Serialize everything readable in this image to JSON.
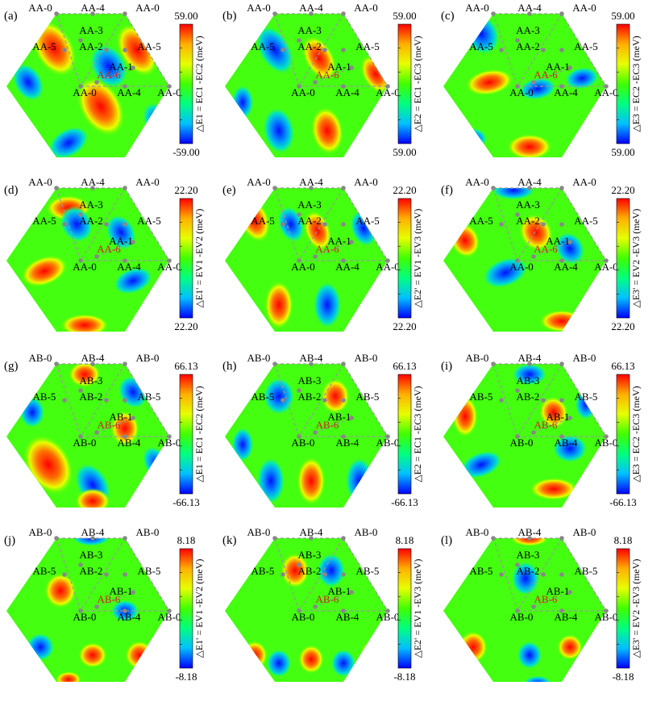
{
  "figure": {
    "colormap": [
      "#0000ff",
      "#00c0ff",
      "#00ff80",
      "#40ff00",
      "#e6ff00",
      "#ffb000",
      "#ff0000"
    ],
    "background_color": "#ffffff",
    "dashed_line_color": "#999999",
    "site_dot_color": "#888888",
    "highlight_label_color": "#d02020"
  },
  "chart_data": [
    {
      "type": "heatmap",
      "panel": "(a)",
      "stacking": "AA",
      "colorbar_label": "△E1 = EC1 -EC2 (meV)",
      "vmax": "59.00",
      "vmin": "-59.00",
      "pattern": 0,
      "site_labels": [
        "AA-0",
        "AA-4",
        "AA-0",
        "AA-3",
        "AA-5",
        "AA-2",
        "AA-5",
        "AA-1",
        "AA-6",
        "AA-0",
        "AA-4",
        "AA-0"
      ]
    },
    {
      "type": "heatmap",
      "panel": "(b)",
      "stacking": "AA",
      "colorbar_label": "△E2 = EC1 -EC3 (meV)",
      "vmax": "59.00",
      "vmin": "59.00",
      "pattern": 1,
      "site_labels": [
        "AA-0",
        "AA-4",
        "AA-0",
        "AA-3",
        "AA-5",
        "AA-2",
        "AA-5",
        "AA-1",
        "AA-6",
        "AA-0",
        "AA-4",
        "AA-0"
      ]
    },
    {
      "type": "heatmap",
      "panel": "(c)",
      "stacking": "AA",
      "colorbar_label": "△E3 = EC2 -EC3 (meV)",
      "vmax": "59.00",
      "vmin": "59.00",
      "pattern": 2,
      "site_labels": [
        "AA-0",
        "AA-4",
        "AA-0",
        "AA-3",
        "AA-5",
        "AA-2",
        "AA-5",
        "AA-1",
        "AA-6",
        "AA-0",
        "AA-4",
        "AA-0"
      ]
    },
    {
      "type": "heatmap",
      "panel": "(d)",
      "stacking": "AA",
      "colorbar_label": "△E1' = EV1 -EV2 (meV)",
      "vmax": "22.20",
      "vmin": "22.20",
      "pattern": 3,
      "site_labels": [
        "AA-0",
        "AA-4",
        "AA-0",
        "AA-3",
        "AA-5",
        "AA-2",
        "AA-5",
        "AA-1",
        "AA-6",
        "AA-0",
        "AA-4",
        "AA-0"
      ]
    },
    {
      "type": "heatmap",
      "panel": "(e)",
      "stacking": "AA",
      "colorbar_label": "△E2' = EV1 -EV3 (meV)",
      "vmax": "22.20",
      "vmin": "22.20",
      "pattern": 4,
      "site_labels": [
        "AA-0",
        "AA-4",
        "AA-0",
        "AA-3",
        "AA-5",
        "AA-2",
        "AA-5",
        "AA-1",
        "AA-6",
        "AA-0",
        "AA-4",
        "AA-0"
      ]
    },
    {
      "type": "heatmap",
      "panel": "(f)",
      "stacking": "AA",
      "colorbar_label": "△E3' = EV2 -EV3 (meV)",
      "vmax": "22.20",
      "vmin": "22.20",
      "pattern": 5,
      "site_labels": [
        "AA-0",
        "AA-4",
        "AA-0",
        "AA-3",
        "AA-5",
        "AA-2",
        "AA-5",
        "AA-1",
        "AA-6",
        "AA-0",
        "AA-4",
        "AA-0"
      ]
    },
    {
      "type": "heatmap",
      "panel": "(g)",
      "stacking": "AB",
      "colorbar_label": "△E1 = EC1 -EC2 (meV)",
      "vmax": "66.13",
      "vmin": "-66.13",
      "pattern": 6,
      "site_labels": [
        "AB-0",
        "AB-4",
        "AB-0",
        "AB-3",
        "AB-5",
        "AB-2",
        "AB-5",
        "AB-1",
        "AB-6",
        "AB-0",
        "AB-4",
        "AB-0"
      ]
    },
    {
      "type": "heatmap",
      "panel": "(h)",
      "stacking": "AB",
      "colorbar_label": "△E2 = EC1 -EC3 (meV)",
      "vmax": "66.13",
      "vmin": "-66.13",
      "pattern": 7,
      "site_labels": [
        "AB-0",
        "AB-4",
        "AB-0",
        "AB-3",
        "AB-5",
        "AB-2",
        "AB-5",
        "AB-1",
        "AB-6",
        "AB-0",
        "AB-4",
        "AB-0"
      ]
    },
    {
      "type": "heatmap",
      "panel": "(i)",
      "stacking": "AB",
      "colorbar_label": "△E3 = EC2 -EC3 (meV)",
      "vmax": "66.13",
      "vmin": "-66.13",
      "pattern": 8,
      "site_labels": [
        "AB-0",
        "AB-4",
        "AB-0",
        "AB-3",
        "AB-5",
        "AB-2",
        "AB-5",
        "AB-1",
        "AB-6",
        "AB-0",
        "AB-4",
        "AB-0"
      ]
    },
    {
      "type": "heatmap",
      "panel": "(j)",
      "stacking": "AB",
      "colorbar_label": "△E1' = EV1 -EV2 (meV)",
      "vmax": "8.18",
      "vmin": "-8.18",
      "pattern": 9,
      "site_labels": [
        "AB-0",
        "AB-4",
        "AB-0",
        "AB-3",
        "AB-5",
        "AB-2",
        "AB-5",
        "AB-1",
        "AB-6",
        "AB-0",
        "AB-4",
        "AB-0"
      ]
    },
    {
      "type": "heatmap",
      "panel": "(k)",
      "stacking": "AB",
      "colorbar_label": "△E2' = EV1 -EV3 (meV)",
      "vmax": "8.18",
      "vmin": "-8.18",
      "pattern": 10,
      "site_labels": [
        "AB-0",
        "AB-4",
        "AB-0",
        "AB-3",
        "AB-5",
        "AB-2",
        "AB-5",
        "AB-1",
        "AB-6",
        "AB-0",
        "AB-4",
        "AB-0"
      ]
    },
    {
      "type": "heatmap",
      "panel": "(l)",
      "stacking": "AB",
      "colorbar_label": "△E3' = EV2 -EV3 (meV)",
      "vmax": "8.18",
      "vmin": "-8.18",
      "pattern": 11,
      "site_labels": [
        "AB-0",
        "AB-4",
        "AB-0",
        "AB-3",
        "AB-5",
        "AB-2",
        "AB-5",
        "AB-1",
        "AB-6",
        "AB-0",
        "AB-4",
        "AB-0"
      ]
    }
  ]
}
